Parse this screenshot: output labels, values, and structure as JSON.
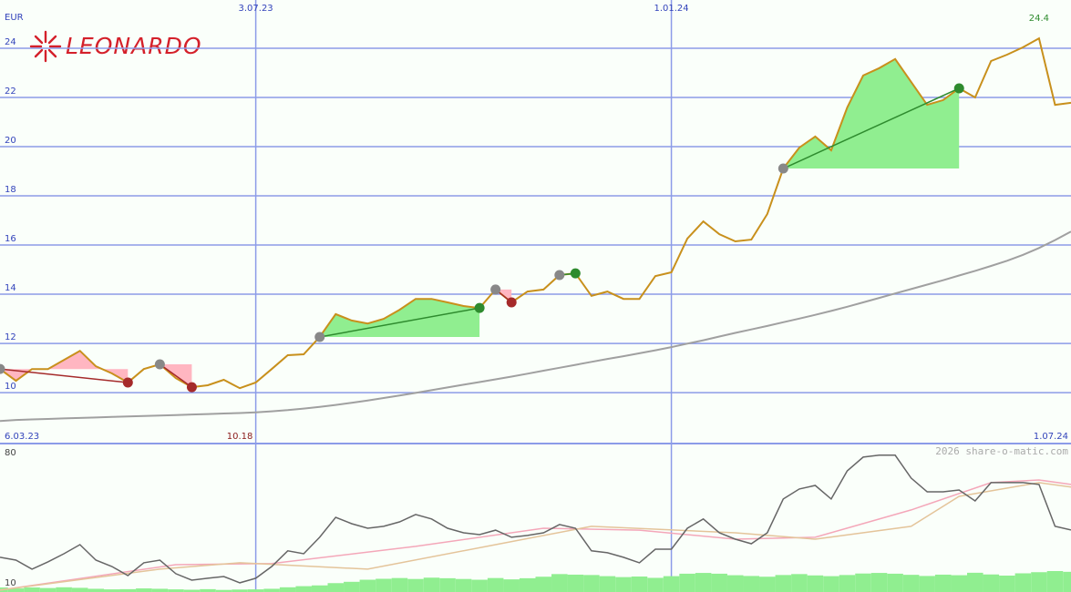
{
  "logo": "LEONARDO",
  "credit": "2026 share-o-matic.com",
  "chart_data": [
    {
      "type": "line",
      "unit": "EUR",
      "categories": [
        "6.03.23",
        null,
        null,
        null,
        null,
        null,
        null,
        null,
        null,
        null,
        null,
        null,
        null,
        null,
        null,
        null,
        "3.07.23",
        null,
        null,
        null,
        null,
        null,
        null,
        null,
        null,
        null,
        null,
        null,
        null,
        null,
        null,
        null,
        null,
        null,
        null,
        null,
        null,
        null,
        null,
        null,
        null,
        null,
        "1.01.24",
        null,
        null,
        null,
        null,
        null,
        null,
        null,
        null,
        null,
        null,
        null,
        null,
        null,
        null,
        null,
        null,
        null,
        null,
        null,
        null,
        null,
        null,
        null,
        null,
        "1.07.24"
      ],
      "series": [
        {
          "color": "#a0a0a0",
          "values": [
            8.85,
            8.89,
            8.91,
            8.93,
            8.95,
            8.97,
            8.99,
            9.01,
            9.03,
            9.05,
            9.07,
            9.09,
            9.11,
            9.13,
            9.15,
            9.17,
            9.2,
            9.24,
            9.29,
            9.35,
            9.42,
            9.5,
            9.59,
            9.68,
            9.78,
            9.88,
            9.99,
            10.1,
            10.21,
            10.32,
            10.43,
            10.54,
            10.65,
            10.77,
            10.89,
            11.01,
            11.13,
            11.25,
            11.37,
            11.48,
            11.6,
            11.72,
            11.85,
            11.99,
            12.13,
            12.28,
            12.43,
            12.57,
            12.71,
            12.86,
            13.01,
            13.16,
            13.32,
            13.49,
            13.67,
            13.85,
            14.03,
            14.21,
            14.39,
            14.57,
            14.76,
            14.95,
            15.15,
            15.36,
            15.6,
            15.88,
            16.2,
            16.55
          ]
        },
        {
          "color": "#c8901c",
          "values": [
            10.96,
            10.48,
            10.96,
            10.96,
            11.33,
            11.7,
            11.07,
            10.78,
            10.41,
            10.96,
            11.15,
            10.59,
            10.22,
            10.3,
            10.52,
            10.18,
            10.41,
            10.96,
            11.52,
            11.56,
            12.26,
            13.19,
            12.93,
            12.81,
            13.0,
            13.37,
            13.81,
            13.81,
            13.67,
            13.52,
            13.44,
            14.19,
            13.67,
            14.11,
            14.19,
            14.78,
            14.85,
            13.93,
            14.11,
            13.81,
            13.81,
            14.74,
            14.89,
            16.26,
            16.96,
            16.44,
            16.15,
            16.22,
            17.26,
            19.11,
            19.96,
            20.41,
            19.85,
            21.59,
            22.89,
            23.19,
            23.56,
            22.63,
            21.7,
            21.89,
            22.37,
            22.0,
            23.48,
            23.74,
            24.04,
            24.4,
            21.7,
            21.78
          ]
        }
      ],
      "low": 10.18,
      "high": 24.4,
      "signals": [
        {
          "from": 0,
          "to": 8,
          "color": "#a52a2a",
          "fill": "#ffb6c1"
        },
        {
          "from": 10,
          "to": 12,
          "color": "#a52a2a",
          "fill": "#ffb6c1"
        },
        {
          "from": 20,
          "to": 30,
          "color": "#2e8b2e",
          "fill": "#90ee90"
        },
        {
          "from": 31,
          "to": 32,
          "color": "#a52a2a",
          "fill": "#ffb6c1"
        },
        {
          "from": 35,
          "to": 36,
          "color": "#2e8b2e",
          "fill": "#90ee90"
        },
        {
          "from": 49,
          "to": 60,
          "color": "#2e8b2e",
          "fill": "#90ee90"
        }
      ],
      "ylim": [
        7.93,
        25.96
      ],
      "yticks": [
        10,
        12,
        14,
        16,
        18,
        20,
        22,
        24
      ],
      "grid": true
    },
    {
      "type": "line",
      "ylim": [
        6.1,
        84.8
      ],
      "yticks": [
        10,
        80
      ],
      "volume": {
        "color": "#90ee90",
        "values": [
          8.5,
          8.0,
          8.5,
          8.2,
          8.6,
          8.3,
          7.8,
          7.5,
          7.6,
          8.0,
          7.8,
          7.5,
          7.3,
          7.6,
          7.2,
          7.4,
          7.5,
          7.8,
          8.6,
          9.2,
          9.6,
          10.8,
          11.5,
          12.6,
          13.1,
          13.5,
          13.0,
          13.7,
          13.4,
          13.0,
          12.6,
          13.5,
          12.8,
          13.4,
          14.2,
          15.6,
          15.3,
          15.1,
          14.5,
          14.0,
          14.3,
          13.6,
          14.5,
          15.8,
          16.2,
          15.8,
          15.0,
          14.6,
          14.2,
          15.1,
          15.6,
          14.9,
          14.5,
          15.1,
          15.9,
          16.2,
          15.8,
          15.2,
          14.6,
          15.3,
          15.0,
          16.3,
          15.4,
          14.8,
          16.0,
          16.6,
          17.2,
          16.8
        ]
      },
      "series": [
        {
          "color": "#f4a7b9",
          "x": [
            0,
            11,
            17,
            26,
            34,
            40,
            46,
            51,
            57,
            62,
            65,
            67
          ],
          "values": [
            7.1,
            20.6,
            21.2,
            30.3,
            39.9,
            38.9,
            34.1,
            35.1,
            49.6,
            64.1,
            65.5,
            63.1
          ]
        },
        {
          "color": "#e4c49a",
          "x": [
            0,
            10,
            15,
            23,
            31,
            37,
            46,
            51,
            57,
            60,
            65,
            67
          ],
          "values": [
            7.1,
            18.2,
            21.6,
            18.2,
            31.2,
            40.9,
            37.5,
            34.1,
            40.9,
            56.8,
            64.1,
            61.7
          ]
        },
        {
          "color": "#666666",
          "values": [
            24.5,
            23.0,
            18.2,
            22.1,
            26.4,
            31.2,
            23.0,
            19.6,
            14.8,
            21.6,
            23.0,
            15.8,
            12.4,
            13.4,
            14.3,
            11.0,
            13.4,
            19.6,
            27.9,
            26.4,
            35.1,
            45.7,
            42.3,
            39.9,
            40.9,
            43.3,
            47.2,
            44.8,
            39.9,
            37.5,
            36.5,
            38.9,
            35.1,
            36.1,
            37.5,
            41.9,
            39.9,
            27.9,
            26.9,
            24.5,
            21.6,
            28.8,
            28.8,
            39.9,
            44.8,
            37.5,
            34.1,
            31.7,
            37.5,
            55.4,
            60.7,
            62.6,
            55.4,
            70.3,
            77.6,
            78.6,
            78.6,
            66.5,
            59.2,
            59.2,
            60.2,
            54.4,
            64.1,
            64.1,
            64.1,
            63.1,
            40.9,
            39.0
          ]
        }
      ]
    }
  ]
}
